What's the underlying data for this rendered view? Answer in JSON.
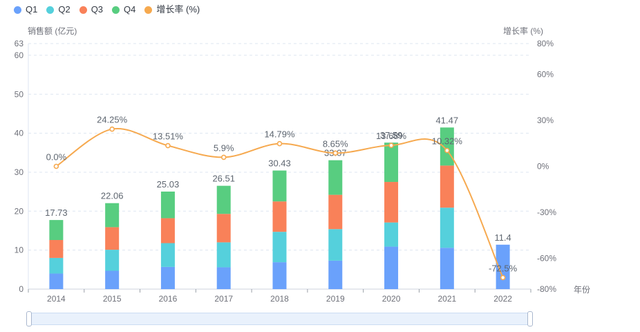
{
  "legend": {
    "items": [
      {
        "label": "Q1",
        "color": "#6aa1fb"
      },
      {
        "label": "Q2",
        "color": "#55d0dc"
      },
      {
        "label": "Q3",
        "color": "#f98159"
      },
      {
        "label": "Q4",
        "color": "#58cd80"
      },
      {
        "label": "增长率 (%)",
        "color": "#f6a94f"
      }
    ]
  },
  "colors": {
    "grid": "#dde5f0",
    "axis_line": "#ccd3dd",
    "tick_mark": "#9aa0a8",
    "axis_text": "#6e7079",
    "value_label": "#5e6670",
    "line": "#f6a94f",
    "point_fill": "#ffffff",
    "slider_fill": "#e9f1fc",
    "slider_border": "#cbdcf2",
    "handle_border": "#a9b7ce"
  },
  "chart_data": {
    "type": "bar",
    "subtype": "stacked-bar-with-line",
    "title": "",
    "categories": [
      "2014",
      "2015",
      "2016",
      "2017",
      "2018",
      "2019",
      "2020",
      "2021",
      "2022"
    ],
    "series": [
      {
        "name": "Q1",
        "type": "bar",
        "stack": true,
        "color": "#6aa1fb",
        "values": [
          4.0,
          4.7,
          5.7,
          5.6,
          6.9,
          7.3,
          10.9,
          10.6,
          11.4
        ]
      },
      {
        "name": "Q2",
        "type": "bar",
        "stack": true,
        "color": "#55d0dc",
        "values": [
          4.0,
          5.4,
          6.1,
          6.4,
          7.8,
          8.1,
          6.2,
          10.3,
          0
        ]
      },
      {
        "name": "Q3",
        "type": "bar",
        "stack": true,
        "color": "#f98159",
        "values": [
          4.6,
          5.8,
          6.4,
          7.3,
          7.8,
          8.8,
          10.4,
          10.8,
          0
        ]
      },
      {
        "name": "Q4",
        "type": "bar",
        "stack": true,
        "color": "#58cd80",
        "values": [
          5.13,
          6.16,
          6.83,
          7.21,
          7.93,
          8.87,
          10.09,
          9.77,
          0
        ]
      }
    ],
    "bar_totals": [
      17.73,
      22.06,
      25.03,
      26.51,
      30.43,
      33.07,
      37.59,
      41.47,
      11.4
    ],
    "bar_total_labels": [
      "17.73",
      "22.06",
      "25.03",
      "26.51",
      "30.43",
      "33.07",
      "37.59",
      "41.47",
      "11.4"
    ],
    "line_series": {
      "name": "增长率 (%)",
      "type": "line",
      "smooth": true,
      "color": "#f6a94f",
      "values": [
        0.0,
        24.25,
        13.51,
        5.9,
        14.79,
        8.65,
        13.68,
        10.32,
        -72.5
      ],
      "point_labels": [
        "0.0%",
        "24.25%",
        "13.51%",
        "5.9%",
        "14.79%",
        "8.65%",
        "13.68%",
        "10.32%",
        "-72.5%"
      ]
    },
    "left_axis": {
      "title": "销售额 (亿元)",
      "min": 0,
      "max": 63,
      "tick_values": [
        0,
        10,
        20,
        30,
        40,
        50,
        60,
        63
      ],
      "tick_labels": [
        "0",
        "10",
        "20",
        "30",
        "40",
        "50",
        "60",
        "63"
      ]
    },
    "right_axis": {
      "title": "增长率 (%)",
      "min": -80,
      "max": 80,
      "tick_values": [
        80,
        60,
        30,
        0,
        -30,
        -60,
        -80
      ],
      "tick_labels": [
        "80%",
        "60%",
        "30%",
        "0%",
        "-30%",
        "-60%",
        "-80%"
      ]
    },
    "x_axis": {
      "name": "年份"
    },
    "grid": true,
    "legend_position": "top-left"
  }
}
